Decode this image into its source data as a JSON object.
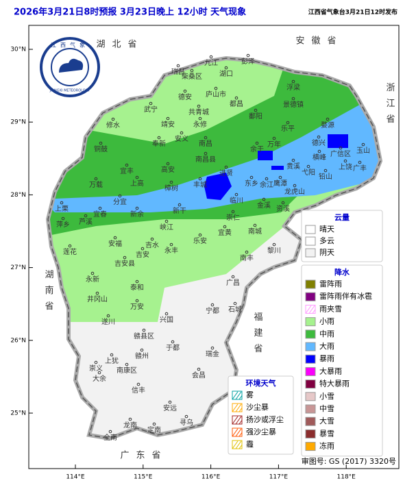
{
  "header": {
    "title": "2026年3月21日8时预报 3月23日晚上 12小时  天气现象",
    "issuer": "江西省气象台3月21日12时发布"
  },
  "map": {
    "logo": {
      "name": "江西气象",
      "english": "JIANGXI METEOROLOGY"
    },
    "province_labels": [
      "湖北省",
      "安徽省",
      "浙江省",
      "福建省",
      "广东省",
      "湖南省"
    ],
    "lat_ticks": [
      {
        "value": 30,
        "label": "30°N"
      },
      {
        "value": 29,
        "label": "29°N"
      },
      {
        "value": 28,
        "label": "28°N"
      },
      {
        "value": 27,
        "label": "27°N"
      },
      {
        "value": 26,
        "label": "26°N"
      },
      {
        "value": 25,
        "label": "25°N"
      }
    ],
    "lon_ticks": [
      {
        "value": 114,
        "label": "114°E"
      },
      {
        "value": 115,
        "label": "115°E"
      },
      {
        "value": 116,
        "label": "116°E"
      },
      {
        "value": 117,
        "label": "117°E"
      },
      {
        "value": 118,
        "label": "118°E"
      }
    ],
    "cities": [
      "九江",
      "湖口",
      "彭泽",
      "瑞昌",
      "柴桑区",
      "庐山市",
      "德安",
      "共青城",
      "都昌",
      "浮梁",
      "景德镇",
      "武宁",
      "修水",
      "永修",
      "鄱阳",
      "乐平",
      "婺源",
      "靖安",
      "安义",
      "奉新",
      "南昌",
      "南昌县",
      "进贤",
      "余干",
      "万年",
      "德兴",
      "铜鼓",
      "宜丰",
      "高安",
      "丰城",
      "东乡",
      "余江",
      "贵溪",
      "鹰潭",
      "横峰",
      "弋阳",
      "上饶",
      "广信区",
      "玉山",
      "铅山",
      "广丰",
      "万载",
      "上高",
      "樟树",
      "临川",
      "金溪",
      "资溪",
      "龙虎山",
      "分宜",
      "宜春",
      "新余",
      "新干",
      "崇仁",
      "萍乡",
      "芦溪",
      "上栗",
      "峡江",
      "宜黄",
      "南城",
      "安福",
      "吉水",
      "乐安",
      "黎川",
      "莲花",
      "吉安",
      "吉安县",
      "永丰",
      "南丰",
      "永新",
      "泰和",
      "广昌",
      "井冈山",
      "万安",
      "宁都",
      "石城",
      "遂川",
      "兴国",
      "赣县区",
      "瑞金",
      "于都",
      "赣州",
      "上犹",
      "南康区",
      "崇义",
      "大余",
      "信丰",
      "会昌",
      "安远",
      "龙南",
      "全南",
      "定南",
      "寻乌"
    ]
  },
  "legends": {
    "cloud": {
      "title": "云量",
      "items": [
        {
          "label": "晴天",
          "color": "#ffffff"
        },
        {
          "label": "多云",
          "color": "#ffffff"
        },
        {
          "label": "阴天",
          "color": "#f2f2f2"
        }
      ]
    },
    "precipitation": {
      "title": "降水",
      "items": [
        {
          "label": "雷阵雨",
          "color": "#808000"
        },
        {
          "label": "雷阵雨伴有冰雹",
          "color": "#800080"
        },
        {
          "label": "雨夹雪",
          "color": "#ff99ff"
        },
        {
          "label": "小雨",
          "color": "#a6f28f"
        },
        {
          "label": "中雨",
          "color": "#3dba3d"
        },
        {
          "label": "大雨",
          "color": "#61b8ff"
        },
        {
          "label": "暴雨",
          "color": "#0000fe"
        },
        {
          "label": "大暴雨",
          "color": "#fa00fa"
        },
        {
          "label": "特大暴雨",
          "color": "#800040"
        },
        {
          "label": "小雪",
          "color": "#e6c8c8"
        },
        {
          "label": "中雪",
          "color": "#c89696"
        },
        {
          "label": "大雪",
          "color": "#a05a5a"
        },
        {
          "label": "暴雪",
          "color": "#8b2d2d"
        },
        {
          "label": "冻雨",
          "color": "#ffaa00"
        }
      ]
    },
    "environment": {
      "title": "环境天气",
      "items": [
        {
          "label": "雾",
          "color": "#00a0a0"
        },
        {
          "label": "沙尘暴",
          "color": "#ffaa00"
        },
        {
          "label": "扬沙或浮尘",
          "color": "#a02020"
        },
        {
          "label": "强沙尘暴",
          "color": "#ff5500"
        },
        {
          "label": "霾",
          "color": "#e0c000"
        }
      ]
    }
  },
  "approval": "审图号: GS (2017) 3320号"
}
